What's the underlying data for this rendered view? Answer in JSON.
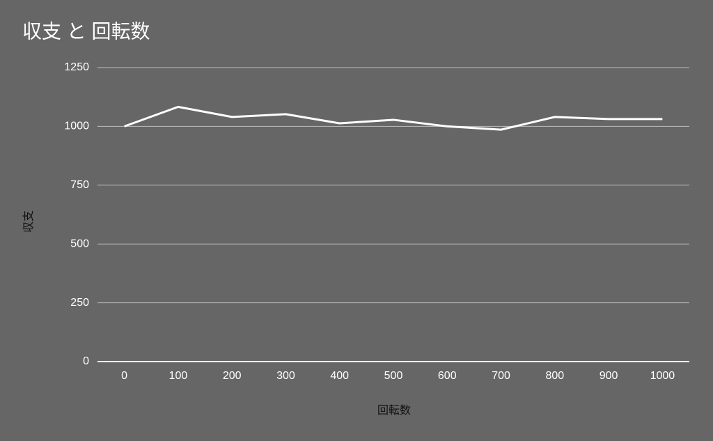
{
  "chart_data": {
    "type": "line",
    "title": "収支 と 回転数",
    "x_label": "回転数",
    "y_label": "収支",
    "x": [
      0,
      100,
      200,
      300,
      400,
      500,
      600,
      700,
      800,
      900,
      1000
    ],
    "series": [
      {
        "color": "#ffffff",
        "values": [
          1000,
          1083,
          1040,
          1052,
          1013,
          1028,
          1000,
          986,
          1040,
          1031,
          1031
        ]
      }
    ],
    "xlim": [
      -50,
      1050
    ],
    "xticks": [
      0,
      100,
      200,
      300,
      400,
      500,
      600,
      700,
      800,
      900,
      1000
    ],
    "ylim": [
      0,
      1250
    ],
    "yticks": [
      0,
      250,
      500,
      750,
      1000,
      1250
    ],
    "grid": true
  }
}
